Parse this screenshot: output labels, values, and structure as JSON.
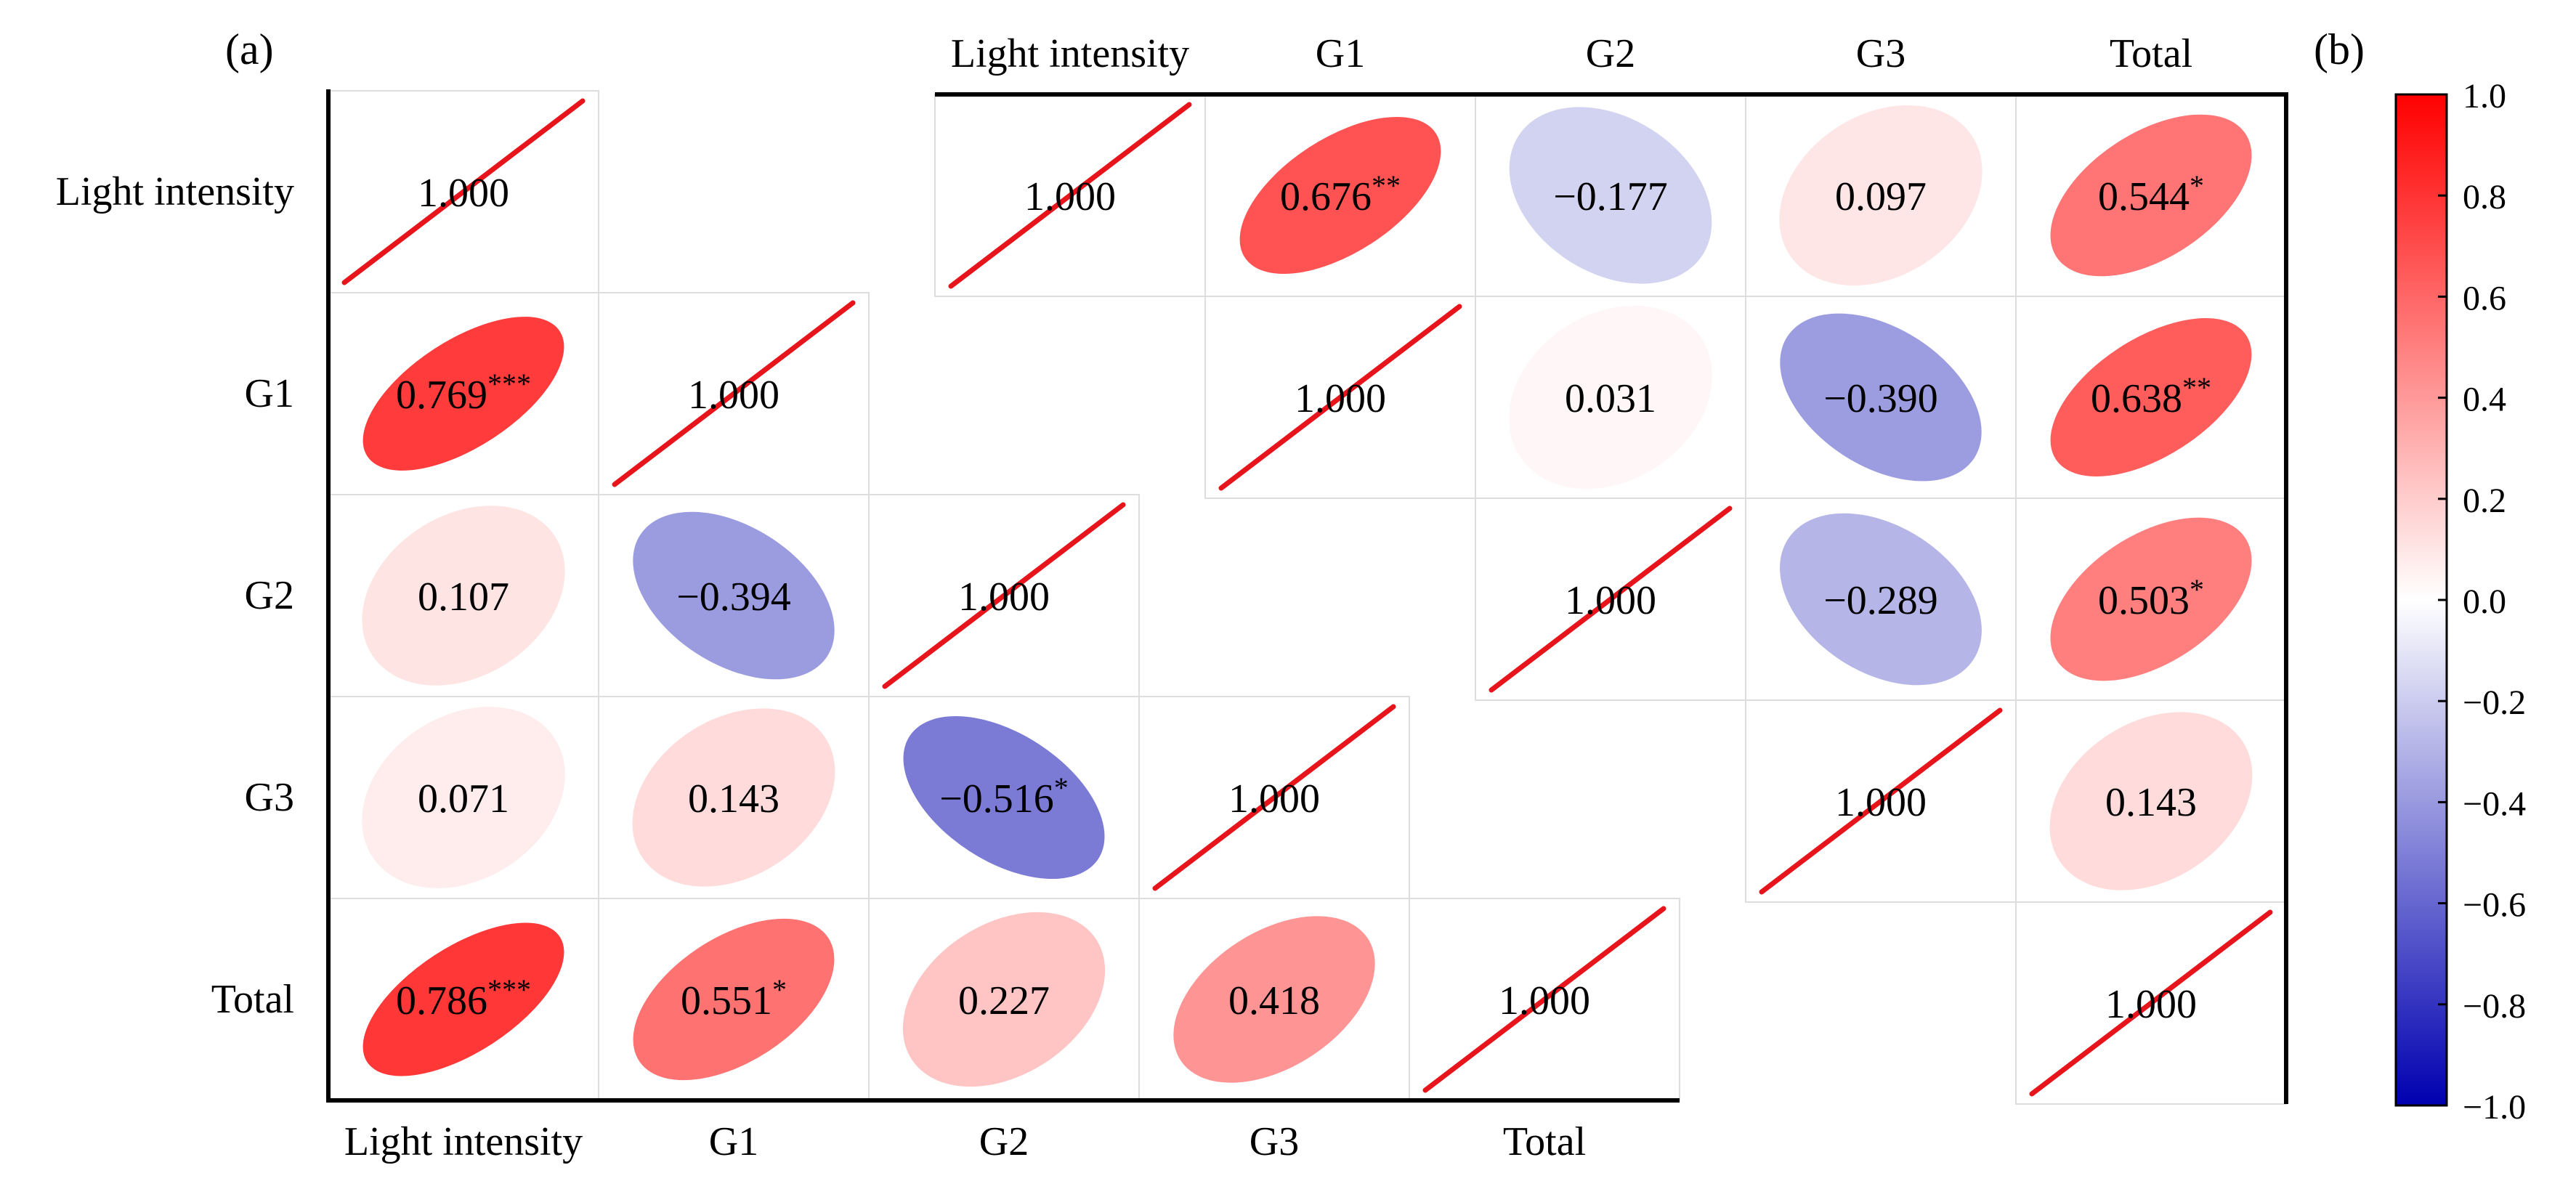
{
  "chart_data": [
    {
      "panel_label": "(a)",
      "type": "heatmap",
      "subtype": "correlation-ellipse",
      "variables": [
        "Light intensity",
        "G1",
        "G2",
        "G3",
        "Total"
      ],
      "lower": {
        "row_labels": [
          "Light intensity",
          "G1",
          "G2",
          "G3",
          "Total"
        ],
        "col_labels": [
          "Light intensity",
          "G1",
          "G2",
          "G3",
          "Total"
        ],
        "matrix": [
          [
            1.0,
            null,
            null,
            null,
            null
          ],
          [
            0.769,
            1.0,
            null,
            null,
            null
          ],
          [
            0.107,
            -0.394,
            1.0,
            null,
            null
          ],
          [
            0.071,
            0.143,
            -0.516,
            1.0,
            null
          ],
          [
            0.786,
            0.551,
            0.227,
            0.418,
            1.0
          ]
        ],
        "text": [
          [
            "1.000",
            null,
            null,
            null,
            null
          ],
          [
            "0.769",
            "1.000",
            null,
            null,
            null
          ],
          [
            "0.107",
            "−0.394",
            "1.000",
            null,
            null
          ],
          [
            "0.071",
            "0.143",
            "−0.516",
            "1.000",
            null
          ],
          [
            "0.786",
            "0.551",
            "0.227",
            "0.418",
            "1.000"
          ]
        ],
        "stars": [
          [
            "",
            null,
            null,
            null,
            null
          ],
          [
            "***",
            "",
            null,
            null,
            null
          ],
          [
            "",
            "",
            "",
            null,
            null
          ],
          [
            "",
            "",
            "*",
            "",
            null
          ],
          [
            "***",
            "*",
            "",
            "",
            ""
          ]
        ]
      },
      "upper": {
        "col_labels": [
          "Light intensity",
          "G1",
          "G2",
          "G3",
          "Total"
        ],
        "matrix": [
          [
            1.0,
            0.676,
            -0.177,
            0.097,
            0.544
          ],
          [
            null,
            1.0,
            0.031,
            -0.39,
            0.638
          ],
          [
            null,
            null,
            1.0,
            -0.289,
            0.503
          ],
          [
            null,
            null,
            null,
            1.0,
            0.143
          ],
          [
            null,
            null,
            null,
            null,
            1.0
          ]
        ],
        "text": [
          [
            "1.000",
            "0.676",
            "−0.177",
            "0.097",
            "0.544"
          ],
          [
            null,
            "1.000",
            "0.031",
            "−0.390",
            "0.638"
          ],
          [
            null,
            null,
            "1.000",
            "−0.289",
            "0.503"
          ],
          [
            null,
            null,
            null,
            "1.000",
            "0.143"
          ],
          [
            null,
            null,
            null,
            null,
            "1.000"
          ]
        ],
        "stars": [
          [
            "",
            "**",
            "",
            "",
            "*"
          ],
          [
            null,
            "",
            "",
            "",
            "**"
          ],
          [
            null,
            null,
            "",
            "",
            "*"
          ],
          [
            null,
            null,
            null,
            "",
            ""
          ],
          [
            null,
            null,
            null,
            null,
            ""
          ]
        ]
      },
      "diagonal_color": "#e8141c"
    },
    {
      "panel_label": "(b)",
      "type": "colorbar",
      "range": [
        -1.0,
        1.0
      ],
      "ticks": [
        "1.0",
        "0.8",
        "0.6",
        "0.4",
        "0.2",
        "0.0",
        "−0.2",
        "−0.4",
        "−0.6",
        "−0.8",
        "−1.0"
      ],
      "tick_values": [
        1.0,
        0.8,
        0.6,
        0.4,
        0.2,
        0.0,
        -0.2,
        -0.4,
        -0.6,
        -0.8,
        -1.0
      ],
      "colors": {
        "positive": "#ff0000",
        "zero": "#ffffff",
        "negative": "#0000b0"
      }
    }
  ]
}
